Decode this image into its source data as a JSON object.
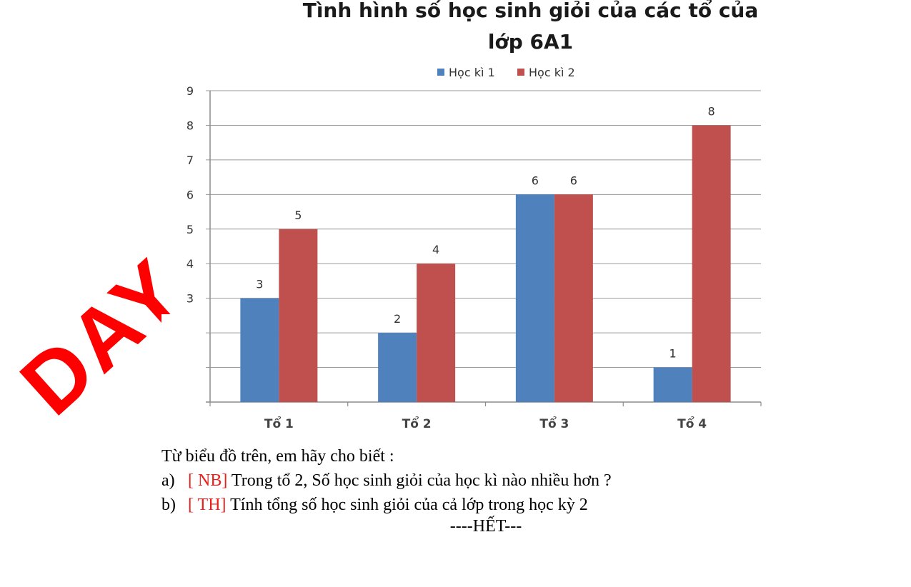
{
  "chart_data": {
    "type": "bar",
    "title_line1": "Tình hình số học sinh giỏi của các tổ của",
    "title_line2": "lớp 6A1",
    "categories": [
      "Tổ 1",
      "Tổ 2",
      "Tổ 3",
      "Tổ 4"
    ],
    "series": [
      {
        "name": "Học kì 1",
        "values": [
          3,
          2,
          6,
          1
        ],
        "color": "#4f81bd"
      },
      {
        "name": "Học kì 2",
        "values": [
          5,
          4,
          6,
          8
        ],
        "color": "#c0504d"
      }
    ],
    "ylim": [
      0,
      9
    ],
    "yticks": [
      "0",
      "1",
      "2",
      "3",
      "4",
      "5",
      "6",
      "7",
      "8",
      "9"
    ],
    "grid": true,
    "legend": "top"
  },
  "question": {
    "intro": "Từ biểu đồ trên, em hãy cho biết :",
    "items": [
      {
        "prefix": "a)",
        "tag": "[ NB]",
        "text": " Trong tổ 2, Số học sinh giỏi của học kì nào nhiều hơn ?"
      },
      {
        "prefix": "b)",
        "tag": "[ TH]",
        "text": " Tính tổng số học sinh giỏi  của cả lớp trong học kỳ 2"
      }
    ],
    "end": "----HẾT---"
  },
  "watermark": "DAY"
}
